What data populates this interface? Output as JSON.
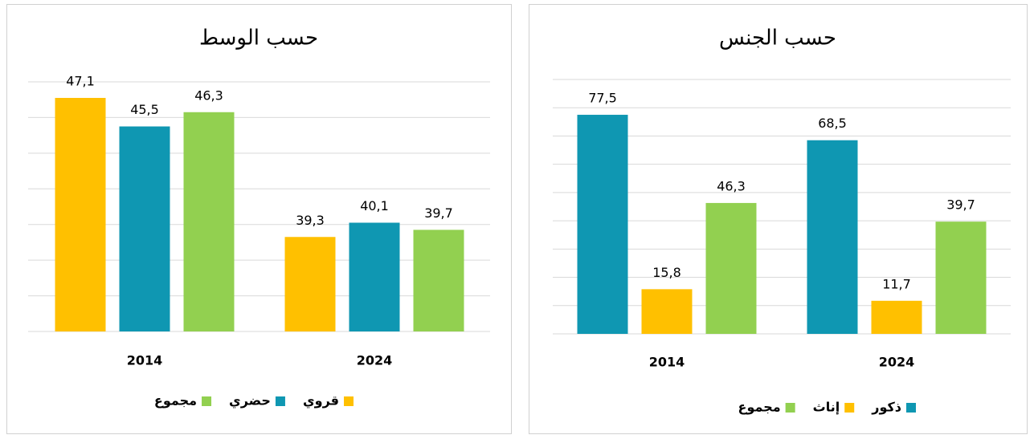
{
  "chart_data": [
    {
      "type": "bar",
      "title": "حسب الوسط",
      "categories": [
        "2014",
        "2024"
      ],
      "series": [
        {
          "name": "قروي",
          "color": "#ffc000",
          "values": [
            47.1,
            39.3
          ],
          "value_labels": [
            "47,1",
            "39,3"
          ]
        },
        {
          "name": "حضري",
          "color": "#0f97b2",
          "values": [
            45.5,
            40.1
          ],
          "value_labels": [
            "45,5",
            "40,1"
          ]
        },
        {
          "name": "مجموع",
          "color": "#92d050",
          "values": [
            46.3,
            39.7
          ],
          "value_labels": [
            "46,3",
            "39,7"
          ]
        }
      ],
      "ylim": [
        34,
        48
      ],
      "yticks": [
        34,
        36,
        38,
        40,
        42,
        44,
        46,
        48
      ],
      "grid": true,
      "legend": "bottom"
    },
    {
      "type": "bar",
      "title": "حسب الجنس",
      "categories": [
        "2014",
        "2024"
      ],
      "series": [
        {
          "name": "ذكور",
          "color": "#0f97b2",
          "values": [
            77.5,
            68.5
          ],
          "value_labels": [
            "77,5",
            "68,5"
          ]
        },
        {
          "name": "إناث",
          "color": "#ffc000",
          "values": [
            15.8,
            11.7
          ],
          "value_labels": [
            "15,8",
            "11,7"
          ]
        },
        {
          "name": "مجموع",
          "color": "#92d050",
          "values": [
            46.3,
            39.7
          ],
          "value_labels": [
            "46,3",
            "39,7"
          ]
        }
      ],
      "ylim": [
        0,
        90
      ],
      "yticks": [
        0,
        10,
        20,
        30,
        40,
        50,
        60,
        70,
        80,
        90
      ],
      "grid": true,
      "legend": "bottom"
    }
  ]
}
